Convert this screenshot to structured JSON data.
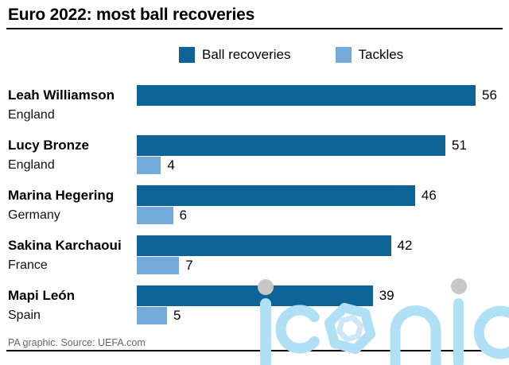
{
  "title": "Euro 2022: most ball recoveries",
  "legend": [
    {
      "label": "Ball recoveries",
      "color": "#0e6397"
    },
    {
      "label": "Tackles",
      "color": "#74aad9"
    }
  ],
  "chart_data": {
    "type": "bar",
    "orientation": "horizontal",
    "title": "Euro 2022: most ball recoveries",
    "categories": [
      "Leah Williamson",
      "Lucy Bronze",
      "Marina Hegering",
      "Sakina Karchaoui",
      "Mapi León"
    ],
    "countries": [
      "England",
      "England",
      "Germany",
      "France",
      "Spain"
    ],
    "series": [
      {
        "name": "Ball recoveries",
        "color": "#0e6397",
        "values": [
          56,
          51,
          46,
          42,
          39
        ]
      },
      {
        "name": "Tackles",
        "color": "#74aad9",
        "values": [
          null,
          4,
          6,
          7,
          5
        ]
      }
    ],
    "xlim": [
      0,
      56
    ],
    "grid": false,
    "legend_position": "top",
    "value_labels": true
  },
  "footer": {
    "credit": "PA graphic. Source: UEFA.com"
  },
  "watermark": {
    "text": "iconic",
    "color": "#b0e0f5",
    "dot_color": "#c8c8c8",
    "hex_color": "#cde7f5"
  }
}
